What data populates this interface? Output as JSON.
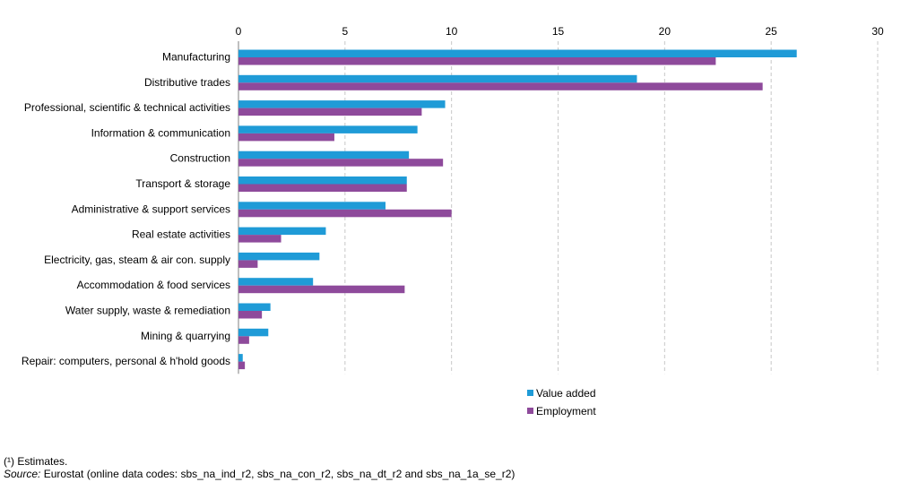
{
  "chart_data": {
    "type": "bar",
    "orientation": "horizontal",
    "categories": [
      "Manufacturing",
      "Distributive trades",
      "Professional, scientific & technical activities",
      "Information & communication",
      "Construction",
      "Transport & storage",
      "Administrative & support services",
      "Real estate activities",
      "Electricity, gas, steam & air con. supply",
      "Accommodation & food services",
      "Water supply, waste & remediation",
      "Mining & quarrying",
      "Repair: computers, personal & h'hold goods"
    ],
    "series": [
      {
        "name": "Value added",
        "color": "#1f9bd7",
        "values": [
          26.2,
          18.7,
          9.7,
          8.4,
          8.0,
          7.9,
          6.9,
          4.1,
          3.8,
          3.5,
          1.5,
          1.4,
          0.2
        ]
      },
      {
        "name": "Employment",
        "color": "#8e4a9b",
        "values": [
          22.4,
          24.6,
          8.6,
          4.5,
          9.6,
          7.9,
          10.0,
          2.0,
          0.9,
          7.8,
          1.1,
          0.5,
          0.3
        ]
      }
    ],
    "xlim": [
      0,
      30
    ],
    "xticks": [
      0,
      5,
      10,
      15,
      20,
      25,
      30
    ],
    "grid": true,
    "legend": "bottom-center"
  },
  "footnotes": {
    "estimates": "(¹) Estimates.",
    "source_label": "Source:",
    "source_text": " Eurostat (online data codes: sbs_na_ind_r2, sbs_na_con_r2, sbs_na_dt_r2 and sbs_na_1a_se_r2)"
  }
}
